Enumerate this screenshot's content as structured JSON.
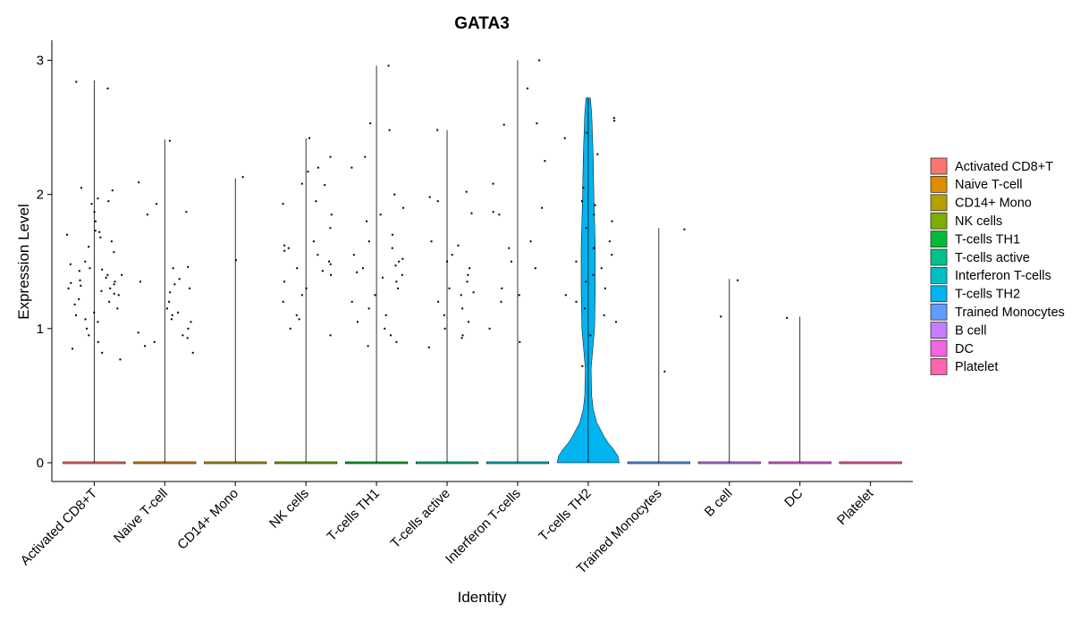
{
  "chart_data": {
    "type": "violin",
    "title": "GATA3",
    "x_label": "Identity",
    "y_label": "Expression Level",
    "ylim": [
      -0.14,
      3.15
    ],
    "yticks": [
      0,
      1,
      2,
      3
    ],
    "legend": "right",
    "categories": [
      "Activated CD8+T",
      "Naive T-cell",
      "CD14+ Mono",
      "NK cells",
      "T-cells TH1",
      "T-cells active",
      "Interferon T-cells",
      "T-cells TH2",
      "Trained Monocytes",
      "B cell",
      "DC",
      "Platelet"
    ],
    "series": [
      {
        "name": "Activated CD8+T",
        "color": "#F8766D",
        "max": 2.85,
        "points": [
          2.84,
          2.79,
          1.97,
          1.93,
          2.05,
          2.03,
          1.95,
          1.87,
          1.8,
          1.73,
          1.7,
          1.72,
          1.68,
          1.61,
          1.57,
          1.5,
          1.45,
          1.43,
          1.4,
          1.38,
          1.35,
          1.33,
          1.3,
          1.28,
          1.25,
          1.22,
          1.2,
          1.18,
          1.15,
          1.1,
          1.07,
          1.05,
          1.0,
          0.95,
          0.9,
          0.85,
          0.82,
          0.77,
          1.36,
          1.32,
          1.3,
          1.26,
          1.44,
          1.48,
          1.12,
          1.65,
          1.4,
          1.34
        ]
      },
      {
        "name": "Naive T-cell",
        "color": "#DE8C00",
        "max": 2.41,
        "points": [
          2.4,
          2.09,
          1.93,
          1.87,
          1.85,
          1.46,
          1.45,
          1.37,
          1.35,
          1.33,
          1.3,
          1.2,
          1.15,
          1.1,
          1.07,
          1.05,
          1.0,
          0.97,
          0.95,
          0.93,
          0.9,
          0.87,
          0.82,
          1.27,
          1.12
        ]
      },
      {
        "name": "CD14+ Mono",
        "color": "#B79F00",
        "max": 2.12,
        "points": [
          2.13,
          1.51
        ]
      },
      {
        "name": "NK cells",
        "color": "#7CAE00",
        "max": 2.42,
        "points": [
          2.42,
          2.28,
          2.2,
          2.17,
          2.08,
          2.07,
          1.95,
          1.93,
          1.85,
          1.75,
          1.65,
          1.62,
          1.6,
          1.58,
          1.55,
          1.5,
          1.48,
          1.45,
          1.43,
          1.4,
          1.35,
          1.3,
          1.25,
          1.2,
          1.1,
          1.07,
          1.0,
          0.95
        ]
      },
      {
        "name": "T-cells TH1",
        "color": "#00BA38",
        "max": 2.96,
        "points": [
          2.96,
          2.53,
          2.48,
          2.28,
          2.2,
          2.0,
          1.9,
          1.85,
          1.8,
          1.7,
          1.65,
          1.6,
          1.55,
          1.5,
          1.45,
          1.42,
          1.4,
          1.35,
          1.3,
          1.25,
          1.2,
          1.15,
          1.1,
          1.05,
          1.0,
          0.95,
          0.9,
          0.87,
          1.47,
          1.52,
          1.38
        ]
      },
      {
        "name": "T-cells active",
        "color": "#00C08B",
        "max": 2.48,
        "points": [
          2.48,
          2.02,
          1.98,
          1.95,
          1.86,
          1.65,
          1.62,
          1.55,
          1.5,
          1.45,
          1.35,
          1.3,
          1.25,
          1.2,
          1.15,
          1.1,
          1.05,
          1.0,
          0.95,
          0.93,
          0.86,
          1.27,
          1.4
        ]
      },
      {
        "name": "Interferon T-cells",
        "color": "#00BFC4",
        "max": 3.0,
        "points": [
          3.0,
          2.79,
          2.53,
          2.52,
          2.25,
          2.08,
          1.9,
          1.87,
          1.85,
          1.65,
          1.6,
          1.5,
          1.45,
          1.3,
          1.25,
          1.2,
          1.0,
          0.9
        ]
      },
      {
        "name": "T-cells TH2",
        "color": "#00B4F0",
        "max": 2.72,
        "points": [
          2.57,
          2.55,
          2.46,
          2.42,
          2.3,
          2.05,
          1.95,
          1.92,
          1.85,
          1.8,
          1.75,
          1.65,
          1.6,
          1.55,
          1.5,
          1.45,
          1.4,
          1.35,
          1.3,
          1.25,
          1.2,
          1.15,
          1.1,
          1.05,
          0.95,
          0.72
        ],
        "density": {
          "y": [
            0,
            0.05,
            0.1,
            0.15,
            0.2,
            0.3,
            0.4,
            0.5,
            0.7,
            1.0,
            1.3,
            1.6,
            2.0,
            2.3,
            2.6,
            2.72
          ],
          "width": [
            0.44,
            0.42,
            0.36,
            0.28,
            0.22,
            0.12,
            0.07,
            0.05,
            0.04,
            0.09,
            0.1,
            0.1,
            0.08,
            0.07,
            0.05,
            0.03
          ]
        }
      },
      {
        "name": "Trained Monocytes",
        "color": "#619CFF",
        "max": 1.75,
        "points": [
          1.74,
          0.68
        ]
      },
      {
        "name": "B cell",
        "color": "#C77CFF",
        "max": 1.37,
        "points": [
          1.36,
          1.09
        ]
      },
      {
        "name": "DC",
        "color": "#F564E3",
        "max": 1.09,
        "points": [
          1.08
        ]
      },
      {
        "name": "Platelet",
        "color": "#FF64B0",
        "max": 0,
        "points": []
      }
    ]
  }
}
